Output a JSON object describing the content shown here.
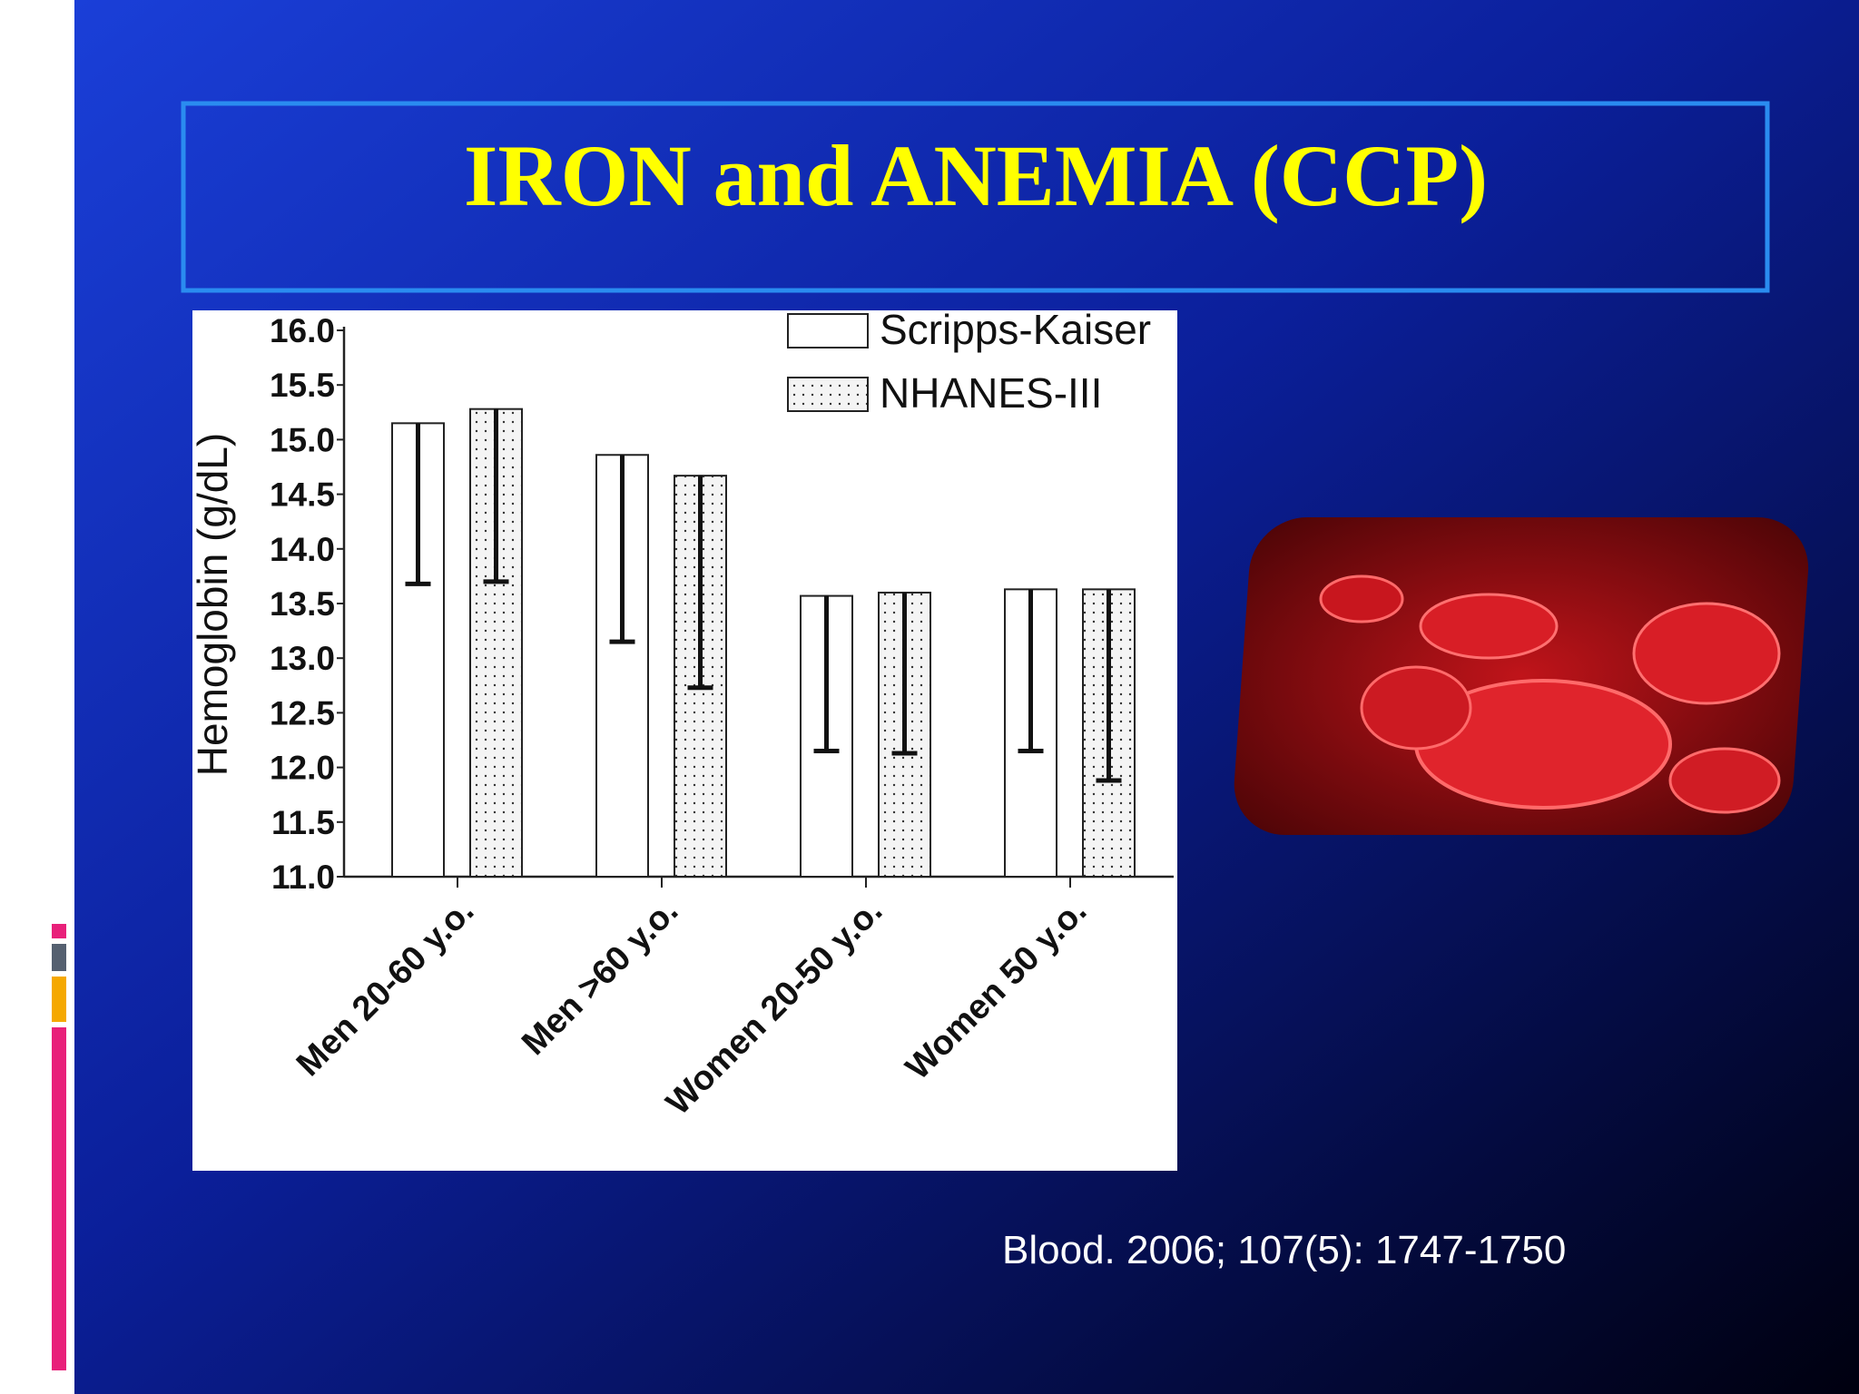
{
  "chart_data": {
    "type": "bar",
    "title": "IRON  and  ANEMIA (CCP)",
    "y_label": "Hemoglobin (g/dL)",
    "categories": [
      "Men 20-60 y.o.",
      "Men >60 y.o.",
      "Women 20-50 y.o.",
      "Women 50 y.o."
    ],
    "series": [
      {
        "name": "Scripps-Kaiser",
        "color": "#ffffff",
        "pattern": "solid",
        "values": [
          15.15,
          14.86,
          13.57,
          13.63
        ],
        "errors": [
          1.47,
          1.71,
          1.42,
          1.48
        ]
      },
      {
        "name": "NHANES-III",
        "color": "#f4f4f4",
        "pattern": "dotted",
        "values": [
          15.28,
          14.67,
          13.6,
          13.63
        ],
        "errors": [
          1.58,
          1.94,
          1.47,
          1.75
        ]
      }
    ],
    "ylim": [
      11,
      16
    ],
    "yticks": [
      {
        "value": 11,
        "label": "11.0"
      },
      11.5,
      {
        "value": 12,
        "label": "12.0"
      },
      12.5,
      {
        "value": 13,
        "label": "13.0"
      },
      13.5,
      {
        "value": 14,
        "label": "14.0"
      },
      14.5,
      {
        "value": 15,
        "label": "15.0"
      },
      15.5,
      {
        "value": 16,
        "label": "16.0"
      }
    ],
    "legend": "top-right"
  },
  "citation": "Blood. 2006; 107(5): 1747-1750"
}
